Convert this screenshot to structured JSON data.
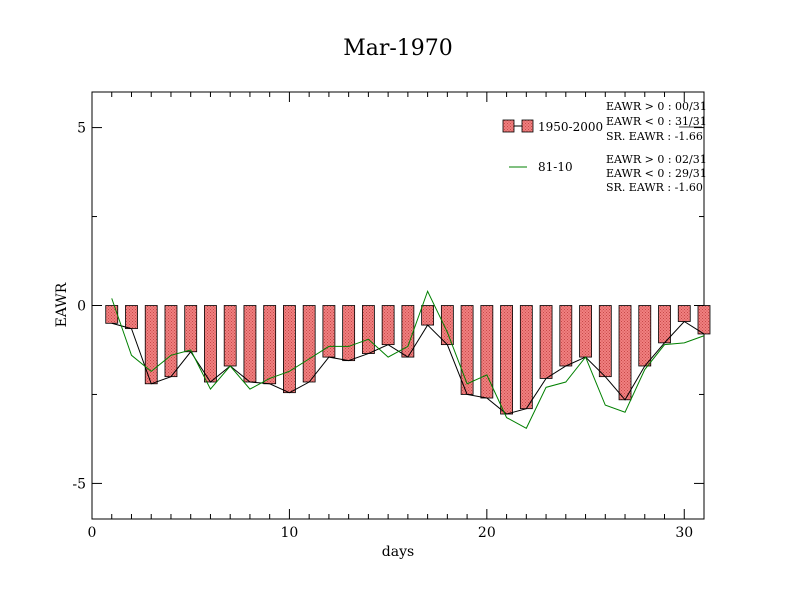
{
  "chart_data": {
    "type": "bar",
    "title": "Mar-1970",
    "xlabel": "days",
    "ylabel": "EAWR",
    "xlim": [
      0,
      31
    ],
    "ylim": [
      -6,
      6
    ],
    "xticks": [
      0,
      10,
      20,
      30
    ],
    "yticks": [
      -5,
      0,
      5
    ],
    "grid": false,
    "legend_position": "top-right",
    "x": [
      1,
      2,
      3,
      4,
      5,
      6,
      7,
      8,
      9,
      10,
      11,
      12,
      13,
      14,
      15,
      16,
      17,
      18,
      19,
      20,
      21,
      22,
      23,
      24,
      25,
      26,
      27,
      28,
      29,
      30,
      31
    ],
    "series": [
      {
        "name": "1950-2000",
        "kind": "bar",
        "color": "#f08080",
        "values": [
          -0.5,
          -0.65,
          -2.2,
          -2.0,
          -1.3,
          -2.15,
          -1.7,
          -2.15,
          -2.2,
          -2.45,
          -2.15,
          -1.45,
          -1.55,
          -1.35,
          -1.1,
          -1.45,
          -0.55,
          -1.1,
          -2.5,
          -2.6,
          -3.05,
          -2.9,
          -2.05,
          -1.7,
          -1.45,
          -2.0,
          -2.65,
          -1.7,
          -1.05,
          -0.45,
          -0.8
        ]
      },
      {
        "name": "81-10",
        "kind": "line",
        "color": "#008000",
        "values": [
          0.2,
          -1.4,
          -1.85,
          -1.4,
          -1.25,
          -2.35,
          -1.7,
          -2.35,
          -2.05,
          -1.85,
          -1.5,
          -1.15,
          -1.15,
          -0.95,
          -1.45,
          -1.15,
          0.4,
          -0.75,
          -2.2,
          -1.95,
          -3.15,
          -3.45,
          -2.3,
          -2.15,
          -1.45,
          -2.8,
          -3.0,
          -1.8,
          -1.1,
          -1.05,
          -0.85
        ]
      }
    ],
    "stats": [
      {
        "lines": [
          "EAWR > 0 : 00/31",
          "EAWR < 0 : 31/31",
          "SR. EAWR : -1.66"
        ]
      },
      {
        "lines": [
          "EAWR > 0 : 02/31",
          "EAWR < 0 : 29/31",
          "SR. EAWR : -1.60"
        ]
      }
    ]
  }
}
